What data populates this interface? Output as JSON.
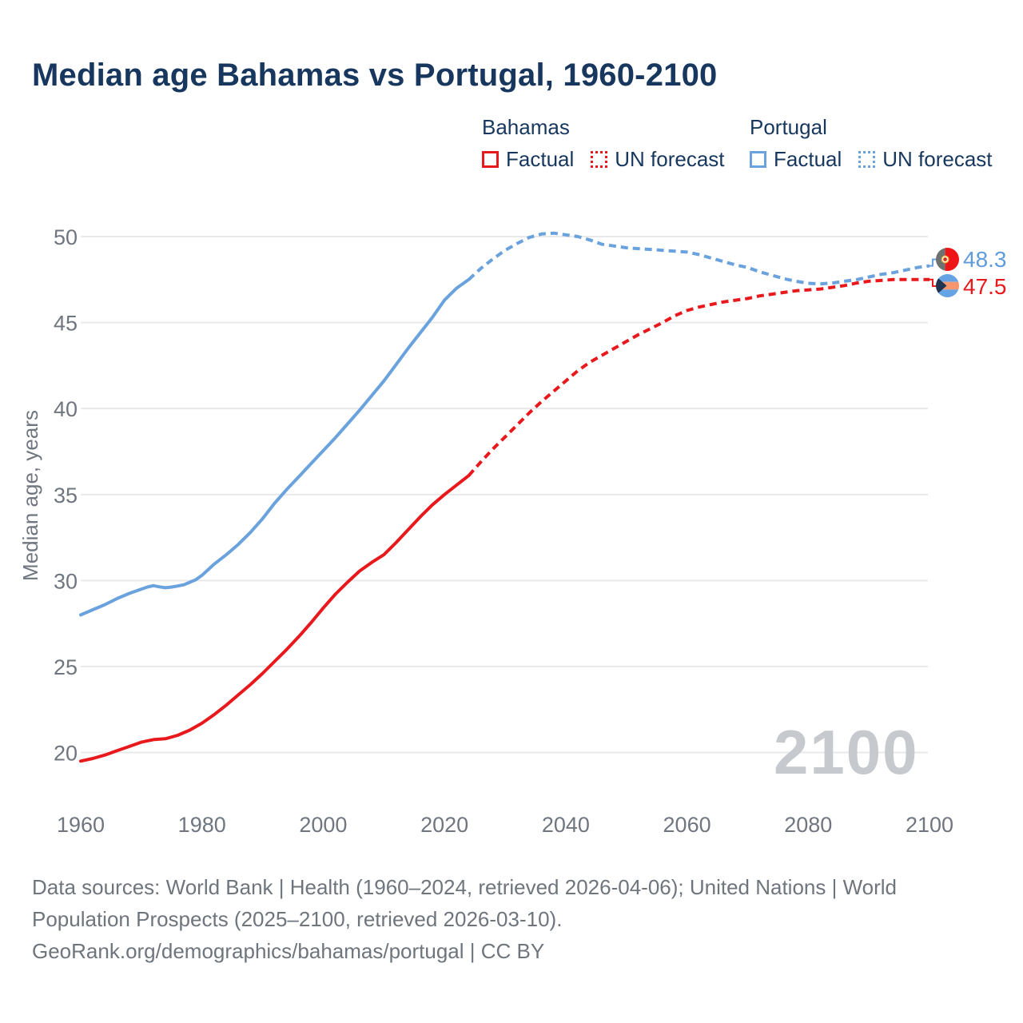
{
  "title": "Median age Bahamas vs Portugal, 1960-2100",
  "legend": {
    "groups": [
      {
        "country": "Bahamas",
        "color": "#e8191c",
        "items": [
          {
            "label": "Factual",
            "style": "solid"
          },
          {
            "label": "UN forecast",
            "style": "dotted"
          }
        ]
      },
      {
        "country": "Portugal",
        "color": "#6aa2de",
        "items": [
          {
            "label": "Factual",
            "style": "solid"
          },
          {
            "label": "UN forecast",
            "style": "dotted"
          }
        ]
      }
    ]
  },
  "colors": {
    "bahamas_red": "#e8191c",
    "portugal_blue": "#6aa2de",
    "heading_navy": "#17375e",
    "axis_text_gray": "#70767f",
    "gridline_gray": "#e9e9ec",
    "watermark_gray": "#c6c9cd"
  },
  "chart_data": {
    "type": "line",
    "title": "Median age Bahamas vs Portugal, 1960-2100",
    "xlabel": "",
    "ylabel": "Median age, years",
    "x_ticks": [
      1960,
      1980,
      2000,
      2020,
      2040,
      2060,
      2080,
      2100
    ],
    "y_ticks": [
      20,
      25,
      30,
      35,
      40,
      45,
      50
    ],
    "xlim": [
      1960,
      2100
    ],
    "ylim": [
      19,
      51.5
    ],
    "grid": "horizontal",
    "legend_position": "top",
    "watermark": "2100",
    "series": [
      {
        "name": "Bahamas",
        "color": "#e8191c",
        "end_label": "47.5",
        "factual": [
          [
            1960,
            19.5
          ],
          [
            1962,
            19.65
          ],
          [
            1964,
            19.85
          ],
          [
            1966,
            20.1
          ],
          [
            1968,
            20.35
          ],
          [
            1970,
            20.6
          ],
          [
            1972,
            20.75
          ],
          [
            1974,
            20.8
          ],
          [
            1976,
            21.0
          ],
          [
            1978,
            21.3
          ],
          [
            1980,
            21.7
          ],
          [
            1982,
            22.2
          ],
          [
            1984,
            22.75
          ],
          [
            1986,
            23.35
          ],
          [
            1988,
            23.95
          ],
          [
            1990,
            24.6
          ],
          [
            1992,
            25.3
          ],
          [
            1994,
            26.0
          ],
          [
            1996,
            26.75
          ],
          [
            1998,
            27.55
          ],
          [
            2000,
            28.4
          ],
          [
            2002,
            29.2
          ],
          [
            2004,
            29.9
          ],
          [
            2006,
            30.55
          ],
          [
            2008,
            31.05
          ],
          [
            2010,
            31.5
          ],
          [
            2012,
            32.2
          ],
          [
            2014,
            32.95
          ],
          [
            2016,
            33.7
          ],
          [
            2018,
            34.4
          ],
          [
            2020,
            35.0
          ],
          [
            2022,
            35.55
          ],
          [
            2024,
            36.1
          ]
        ],
        "forecast": [
          [
            2024,
            36.1
          ],
          [
            2026,
            36.9
          ],
          [
            2028,
            37.65
          ],
          [
            2030,
            38.35
          ],
          [
            2032,
            39.05
          ],
          [
            2034,
            39.75
          ],
          [
            2036,
            40.4
          ],
          [
            2038,
            41.0
          ],
          [
            2040,
            41.6
          ],
          [
            2042,
            42.2
          ],
          [
            2044,
            42.7
          ],
          [
            2046,
            43.1
          ],
          [
            2048,
            43.5
          ],
          [
            2050,
            43.9
          ],
          [
            2052,
            44.3
          ],
          [
            2054,
            44.65
          ],
          [
            2056,
            45.0
          ],
          [
            2058,
            45.4
          ],
          [
            2060,
            45.7
          ],
          [
            2062,
            45.9
          ],
          [
            2064,
            46.05
          ],
          [
            2066,
            46.2
          ],
          [
            2068,
            46.3
          ],
          [
            2070,
            46.4
          ],
          [
            2072,
            46.55
          ],
          [
            2074,
            46.65
          ],
          [
            2076,
            46.75
          ],
          [
            2078,
            46.85
          ],
          [
            2080,
            46.9
          ],
          [
            2082,
            46.95
          ],
          [
            2084,
            47.05
          ],
          [
            2086,
            47.15
          ],
          [
            2088,
            47.3
          ],
          [
            2090,
            47.4
          ],
          [
            2092,
            47.45
          ],
          [
            2094,
            47.5
          ],
          [
            2096,
            47.5
          ],
          [
            2098,
            47.5
          ],
          [
            2100,
            47.5
          ]
        ]
      },
      {
        "name": "Portugal",
        "color": "#6aa2de",
        "end_label": "48.3",
        "factual": [
          [
            1960,
            28.0
          ],
          [
            1962,
            28.3
          ],
          [
            1964,
            28.6
          ],
          [
            1966,
            28.95
          ],
          [
            1968,
            29.25
          ],
          [
            1970,
            29.5
          ],
          [
            1971,
            29.62
          ],
          [
            1972,
            29.7
          ],
          [
            1973,
            29.63
          ],
          [
            1974,
            29.58
          ],
          [
            1975,
            29.62
          ],
          [
            1976,
            29.68
          ],
          [
            1977,
            29.75
          ],
          [
            1978,
            29.9
          ],
          [
            1979,
            30.05
          ],
          [
            1980,
            30.3
          ],
          [
            1982,
            30.95
          ],
          [
            1984,
            31.5
          ],
          [
            1986,
            32.1
          ],
          [
            1988,
            32.8
          ],
          [
            1990,
            33.6
          ],
          [
            1992,
            34.5
          ],
          [
            1994,
            35.3
          ],
          [
            1996,
            36.05
          ],
          [
            1998,
            36.8
          ],
          [
            2000,
            37.55
          ],
          [
            2002,
            38.3
          ],
          [
            2004,
            39.1
          ],
          [
            2006,
            39.9
          ],
          [
            2008,
            40.75
          ],
          [
            2010,
            41.6
          ],
          [
            2012,
            42.55
          ],
          [
            2014,
            43.5
          ],
          [
            2016,
            44.4
          ],
          [
            2018,
            45.3
          ],
          [
            2020,
            46.3
          ],
          [
            2022,
            47.0
          ],
          [
            2024,
            47.5
          ]
        ],
        "forecast": [
          [
            2024,
            47.5
          ],
          [
            2026,
            48.15
          ],
          [
            2028,
            48.7
          ],
          [
            2030,
            49.2
          ],
          [
            2032,
            49.6
          ],
          [
            2034,
            49.95
          ],
          [
            2036,
            50.15
          ],
          [
            2038,
            50.2
          ],
          [
            2040,
            50.1
          ],
          [
            2042,
            50.0
          ],
          [
            2044,
            49.8
          ],
          [
            2046,
            49.55
          ],
          [
            2048,
            49.45
          ],
          [
            2050,
            49.35
          ],
          [
            2052,
            49.3
          ],
          [
            2054,
            49.25
          ],
          [
            2056,
            49.2
          ],
          [
            2058,
            49.15
          ],
          [
            2060,
            49.1
          ],
          [
            2062,
            48.95
          ],
          [
            2064,
            48.75
          ],
          [
            2066,
            48.55
          ],
          [
            2068,
            48.35
          ],
          [
            2070,
            48.2
          ],
          [
            2072,
            47.95
          ],
          [
            2074,
            47.75
          ],
          [
            2076,
            47.55
          ],
          [
            2078,
            47.4
          ],
          [
            2080,
            47.28
          ],
          [
            2082,
            47.25
          ],
          [
            2084,
            47.3
          ],
          [
            2086,
            47.4
          ],
          [
            2088,
            47.5
          ],
          [
            2090,
            47.65
          ],
          [
            2092,
            47.8
          ],
          [
            2094,
            47.9
          ],
          [
            2096,
            48.05
          ],
          [
            2098,
            48.2
          ],
          [
            2100,
            48.3
          ]
        ]
      }
    ]
  },
  "end_labels": {
    "top_value": "48.3",
    "bottom_value": "47.5"
  },
  "footer": {
    "lines": [
      "Data sources: World Bank | Health (1960–2024, retrieved 2026-04-06); United Nations | World",
      "Population Prospects (2025–2100, retrieved 2026-03-10).",
      "GeoRank.org/demographics/bahamas/portugal | CC BY"
    ]
  }
}
